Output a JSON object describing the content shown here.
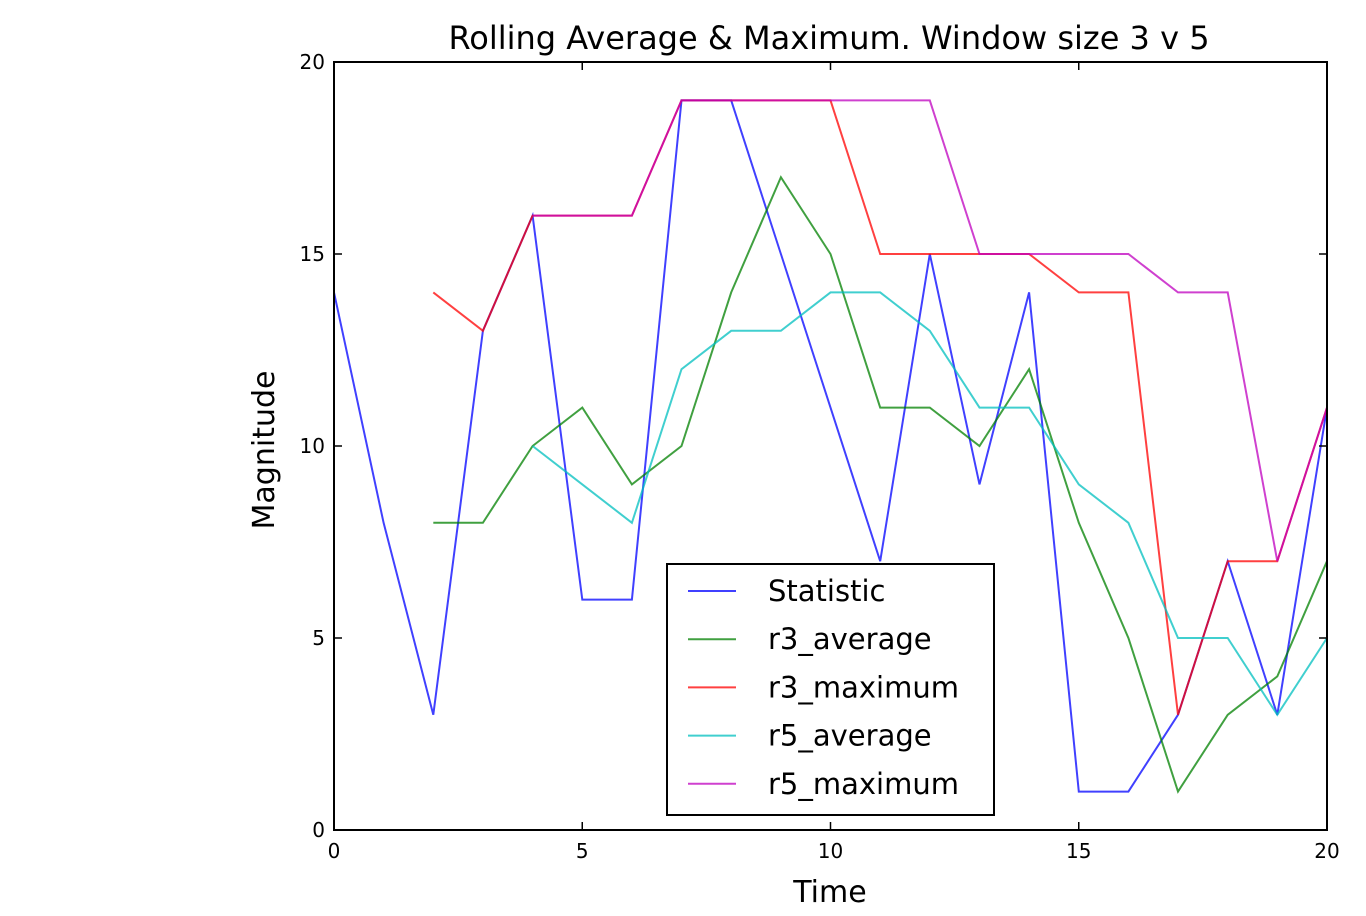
{
  "chart_data": {
    "type": "line",
    "title": "Rolling Average & Maximum. Window size 3 v 5",
    "xlabel": "Time",
    "ylabel": "Magnitude",
    "xlim": [
      0,
      20
    ],
    "ylim": [
      0,
      20
    ],
    "xticks": [
      0,
      5,
      10,
      15,
      20
    ],
    "yticks": [
      0,
      5,
      10,
      15,
      20
    ],
    "grid": false,
    "legend_position": "lower-center",
    "series": [
      {
        "name": "Statistic",
        "color": "#0000ff",
        "x": [
          0,
          1,
          2,
          3,
          4,
          5,
          6,
          7,
          8,
          9,
          10,
          11,
          12,
          13,
          14,
          15,
          16,
          17,
          18,
          19,
          20
        ],
        "y": [
          14,
          8,
          3,
          13,
          16,
          6,
          6,
          19,
          19,
          15,
          11,
          7,
          15,
          9,
          14,
          1,
          1,
          3,
          7,
          3,
          11
        ]
      },
      {
        "name": "r3_average",
        "color": "#008000",
        "x": [
          2,
          3,
          4,
          5,
          6,
          7,
          8,
          9,
          10,
          11,
          12,
          13,
          14,
          15,
          16,
          17,
          18,
          19,
          20
        ],
        "y": [
          8,
          8,
          10,
          11,
          9,
          10,
          14,
          17,
          15,
          11,
          11,
          10,
          12,
          8,
          5,
          1,
          3,
          4,
          7
        ]
      },
      {
        "name": "r3_maximum",
        "color": "#ff0000",
        "x": [
          2,
          3,
          4,
          5,
          6,
          7,
          8,
          9,
          10,
          11,
          12,
          13,
          14,
          15,
          16,
          17,
          18,
          19,
          20
        ],
        "y": [
          14,
          13,
          16,
          16,
          16,
          19,
          19,
          19,
          19,
          15,
          15,
          15,
          15,
          14,
          14,
          3,
          7,
          7,
          11
        ]
      },
      {
        "name": "r5_average",
        "color": "#00bfbf",
        "x": [
          4,
          5,
          6,
          7,
          8,
          9,
          10,
          11,
          12,
          13,
          14,
          15,
          16,
          17,
          18,
          19,
          20
        ],
        "y": [
          10,
          9,
          8,
          12,
          13,
          13,
          14,
          14,
          13,
          11,
          11,
          9,
          8,
          5,
          5,
          3,
          5
        ]
      },
      {
        "name": "r5_maximum",
        "color": "#bf00bf",
        "x": [
          4,
          5,
          6,
          7,
          8,
          9,
          10,
          11,
          12,
          13,
          14,
          15,
          16,
          17,
          18,
          19,
          20
        ],
        "y": [
          16,
          16,
          16,
          19,
          19,
          19,
          19,
          19,
          19,
          15,
          15,
          15,
          15,
          14,
          14,
          7,
          11
        ]
      }
    ]
  }
}
